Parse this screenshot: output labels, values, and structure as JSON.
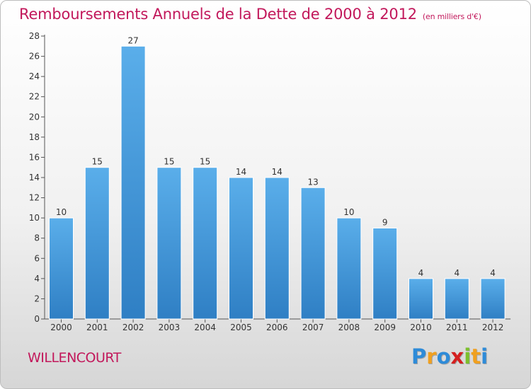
{
  "title": "Remboursements Annuels de la Dette de 2000 à 2012",
  "subtitle": "(en milliers d'€)",
  "commune": "WILLENCOURT",
  "logo": {
    "letters": [
      "P",
      "r",
      "o",
      "x",
      "i",
      "t",
      "i"
    ],
    "colors": [
      "#2e8bd8",
      "#f0a020",
      "#2e8bd8",
      "#d42020",
      "#7cc02c",
      "#f0a020",
      "#2e8bd8"
    ]
  },
  "colors": {
    "bar": "#4a9fe3",
    "bar_dark": "#2f7fc4",
    "title": "#c2185b"
  },
  "chart_data": {
    "type": "bar",
    "title": "Remboursements Annuels de la Dette de 2000 à 2012",
    "subtitle": "(en milliers d'€)",
    "categories": [
      "2000",
      "2001",
      "2002",
      "2003",
      "2004",
      "2005",
      "2006",
      "2007",
      "2008",
      "2009",
      "2010",
      "2011",
      "2012"
    ],
    "values": [
      10,
      15,
      27,
      15,
      15,
      14,
      14,
      13,
      10,
      9,
      4,
      4,
      4
    ],
    "ylim": [
      0,
      28
    ],
    "yticks": [
      0,
      2,
      4,
      6,
      8,
      10,
      12,
      14,
      16,
      18,
      20,
      22,
      24,
      26,
      28
    ],
    "grid": false,
    "xlabel": "",
    "ylabel": ""
  }
}
